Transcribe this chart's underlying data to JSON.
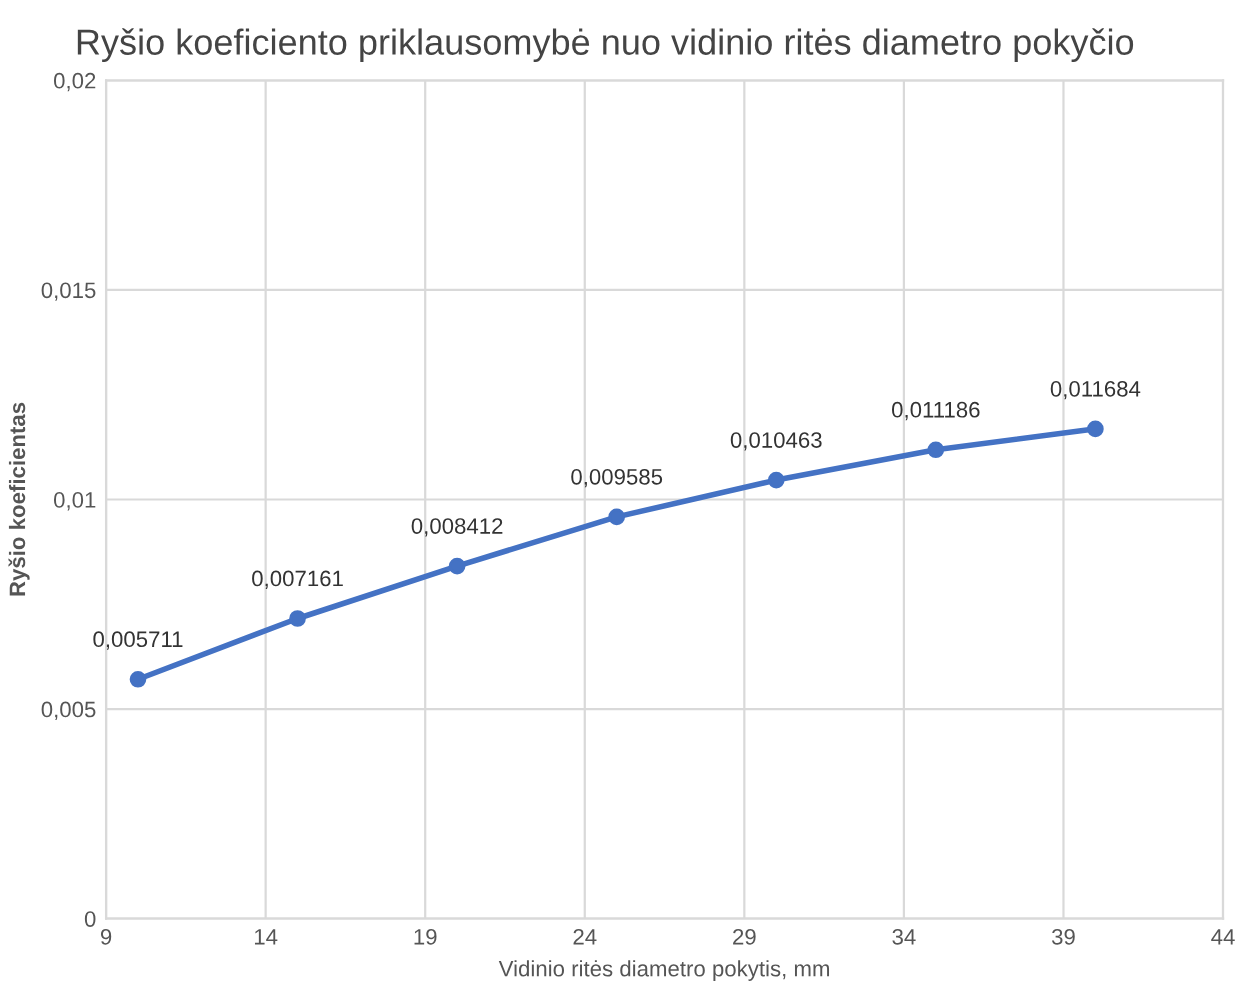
{
  "chart_data": {
    "type": "line",
    "title": "Ryšio koeficiento priklausomybė nuo vidinio ritės diametro pokyčio",
    "xlabel": "Vidinio ritės diametro pokytis, mm",
    "ylabel": "Ryšio koeficientas",
    "x": [
      10,
      15,
      20,
      25,
      30,
      35,
      40
    ],
    "series": [
      {
        "color": "#4472c4",
        "values": [
          0.005711,
          0.007161,
          0.008412,
          0.009585,
          0.010463,
          0.011186,
          0.011684
        ],
        "value_labels": [
          "0,005711",
          "0,007161",
          "0,008412",
          "0,009585",
          "0,010463",
          "0,011186",
          "0,011684"
        ]
      }
    ],
    "xlim": [
      9,
      44
    ],
    "xticks": [
      9,
      14,
      19,
      24,
      29,
      34,
      39,
      44
    ],
    "ylim": [
      0,
      0.02
    ],
    "yticks": [
      {
        "value": 0,
        "label": "0"
      },
      {
        "value": 0.005,
        "label": "0,005"
      },
      {
        "value": 0.01,
        "label": "0,01"
      },
      {
        "value": 0.015,
        "label": "0,015"
      },
      {
        "value": 0.02,
        "label": "0,02"
      }
    ],
    "grid": true,
    "marker": "circle",
    "line_style": "solid"
  }
}
